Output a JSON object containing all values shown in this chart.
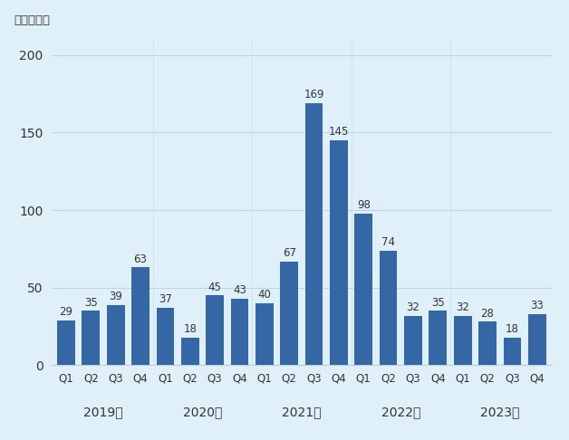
{
  "values": [
    29,
    35,
    39,
    63,
    37,
    18,
    45,
    43,
    40,
    67,
    169,
    145,
    98,
    74,
    32,
    35,
    32,
    28,
    18,
    33
  ],
  "bar_labels": [
    "Q1",
    "Q2",
    "Q3",
    "Q4",
    "Q1",
    "Q2",
    "Q3",
    "Q4",
    "Q1",
    "Q2",
    "Q3",
    "Q4",
    "Q1",
    "Q2",
    "Q3",
    "Q4",
    "Q1",
    "Q2",
    "Q3",
    "Q4"
  ],
  "year_labels": [
    "2019年",
    "2020年",
    "2021年",
    "2022年",
    "2023年"
  ],
  "bar_color": "#3566a5",
  "background_color": "#e0f0f8",
  "ylabel": "（億ドル）",
  "yticks": [
    0,
    50,
    100,
    150,
    200
  ],
  "ylim": [
    0,
    210
  ],
  "grid_color": "#b8d8e8",
  "label_fontsize": 8.5,
  "year_fontsize": 10,
  "ylabel_fontsize": 9.5,
  "ytick_fontsize": 10,
  "value_label_color": "#333333"
}
